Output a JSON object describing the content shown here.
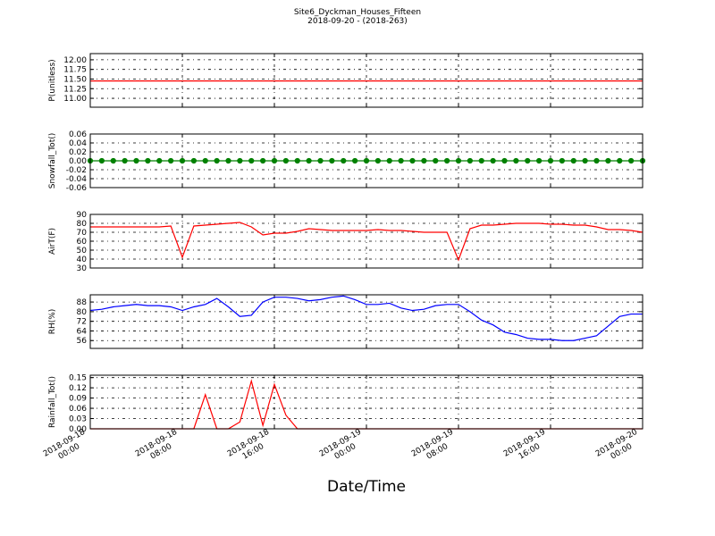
{
  "title": "Site6_Dyckman_Houses_Fifteen",
  "subtitle": "2018-09-20 - (2018-263)",
  "x_label": "Date/Time",
  "chart_data": [
    {
      "type": "line",
      "y_label": "P(unitless)",
      "color": "#ff0000",
      "grid": true,
      "x": [
        "2018-09-18 00:00",
        "2018-09-18 01:00",
        "2018-09-18 02:00",
        "2018-09-18 03:00",
        "2018-09-18 04:00",
        "2018-09-18 05:00",
        "2018-09-18 06:00",
        "2018-09-18 07:00",
        "2018-09-18 08:00",
        "2018-09-18 09:00",
        "2018-09-18 10:00",
        "2018-09-18 11:00",
        "2018-09-18 12:00",
        "2018-09-18 13:00",
        "2018-09-18 14:00",
        "2018-09-18 15:00",
        "2018-09-18 16:00",
        "2018-09-18 17:00",
        "2018-09-18 18:00",
        "2018-09-18 19:00",
        "2018-09-18 20:00",
        "2018-09-18 21:00",
        "2018-09-18 22:00",
        "2018-09-18 23:00",
        "2018-09-19 00:00",
        "2018-09-19 01:00",
        "2018-09-19 02:00",
        "2018-09-19 03:00",
        "2018-09-19 04:00",
        "2018-09-19 05:00",
        "2018-09-19 06:00",
        "2018-09-19 07:00",
        "2018-09-19 08:00",
        "2018-09-19 09:00",
        "2018-09-19 10:00",
        "2018-09-19 11:00",
        "2018-09-19 12:00",
        "2018-09-19 13:00",
        "2018-09-19 14:00",
        "2018-09-19 15:00",
        "2018-09-19 16:00",
        "2018-09-19 17:00",
        "2018-09-19 18:00",
        "2018-09-19 19:00",
        "2018-09-19 20:00",
        "2018-09-19 21:00",
        "2018-09-19 22:00",
        "2018-09-19 23:00",
        "2018-09-20 00:00"
      ],
      "values": [
        11.45,
        11.45,
        11.45,
        11.45,
        11.45,
        11.45,
        11.45,
        11.45,
        11.45,
        11.45,
        11.45,
        11.45,
        11.45,
        11.45,
        11.45,
        11.45,
        11.45,
        11.45,
        11.45,
        11.45,
        11.45,
        11.45,
        11.45,
        11.45,
        11.45,
        11.45,
        11.45,
        11.45,
        11.45,
        11.45,
        11.45,
        11.45,
        11.45,
        11.45,
        11.45,
        11.45,
        11.45,
        11.45,
        11.45,
        11.45,
        11.45,
        11.45,
        11.45,
        11.45,
        11.45,
        11.45,
        11.45,
        11.45,
        11.45
      ],
      "xlim": [
        "2018-09-18 00:00",
        "2018-09-20 00:00"
      ],
      "xticks": [
        "2018-09-18 00:00",
        "2018-09-18 08:00",
        "2018-09-18 16:00",
        "2018-09-19 00:00",
        "2018-09-19 08:00",
        "2018-09-19 16:00",
        "2018-09-20 00:00"
      ],
      "ylim": [
        10.77,
        12.16
      ],
      "yticks": [
        {
          "value": 11,
          "label": "11.00"
        },
        11.25,
        {
          "value": 11.5,
          "label": "11.50"
        },
        11.75,
        {
          "value": 12,
          "label": "12.00"
        }
      ]
    },
    {
      "type": "line",
      "y_label": "Snowfall_Tot()",
      "color": "#008000",
      "grid": true,
      "marker": true,
      "x": [
        "2018-09-18 00:00",
        "2018-09-18 01:00",
        "2018-09-18 02:00",
        "2018-09-18 03:00",
        "2018-09-18 04:00",
        "2018-09-18 05:00",
        "2018-09-18 06:00",
        "2018-09-18 07:00",
        "2018-09-18 08:00",
        "2018-09-18 09:00",
        "2018-09-18 10:00",
        "2018-09-18 11:00",
        "2018-09-18 12:00",
        "2018-09-18 13:00",
        "2018-09-18 14:00",
        "2018-09-18 15:00",
        "2018-09-18 16:00",
        "2018-09-18 17:00",
        "2018-09-18 18:00",
        "2018-09-18 19:00",
        "2018-09-18 20:00",
        "2018-09-18 21:00",
        "2018-09-18 22:00",
        "2018-09-18 23:00",
        "2018-09-19 00:00",
        "2018-09-19 01:00",
        "2018-09-19 02:00",
        "2018-09-19 03:00",
        "2018-09-19 04:00",
        "2018-09-19 05:00",
        "2018-09-19 06:00",
        "2018-09-19 07:00",
        "2018-09-19 08:00",
        "2018-09-19 09:00",
        "2018-09-19 10:00",
        "2018-09-19 11:00",
        "2018-09-19 12:00",
        "2018-09-19 13:00",
        "2018-09-19 14:00",
        "2018-09-19 15:00",
        "2018-09-19 16:00",
        "2018-09-19 17:00",
        "2018-09-19 18:00",
        "2018-09-19 19:00",
        "2018-09-19 20:00",
        "2018-09-19 21:00",
        "2018-09-19 22:00",
        "2018-09-19 23:00",
        "2018-09-20 00:00"
      ],
      "values": [
        0,
        0,
        0,
        0,
        0,
        0,
        0,
        0,
        0,
        0,
        0,
        0,
        0,
        0,
        0,
        0,
        0,
        0,
        0,
        0,
        0,
        0,
        0,
        0,
        0,
        0,
        0,
        0,
        0,
        0,
        0,
        0,
        0,
        0,
        0,
        0,
        0,
        0,
        0,
        0,
        0,
        0,
        0,
        0,
        0,
        0,
        0,
        0,
        0
      ],
      "xlim": [
        "2018-09-18 00:00",
        "2018-09-20 00:00"
      ],
      "xticks": [
        "2018-09-18 00:00",
        "2018-09-18 08:00",
        "2018-09-18 16:00",
        "2018-09-19 00:00",
        "2018-09-19 08:00",
        "2018-09-19 16:00",
        "2018-09-20 00:00"
      ],
      "ylim": [
        -0.06,
        0.06
      ],
      "yticks": [
        -0.06,
        -0.04,
        -0.02,
        {
          "value": 0,
          "label": "0.00"
        },
        0.02,
        0.04,
        0.06
      ]
    },
    {
      "type": "line",
      "y_label": "AirT(F)",
      "color": "#ff0000",
      "grid": true,
      "x": [
        "2018-09-18 00:00",
        "2018-09-18 01:00",
        "2018-09-18 02:00",
        "2018-09-18 03:00",
        "2018-09-18 04:00",
        "2018-09-18 05:00",
        "2018-09-18 06:00",
        "2018-09-18 07:00",
        "2018-09-18 08:00",
        "2018-09-18 09:00",
        "2018-09-18 10:00",
        "2018-09-18 11:00",
        "2018-09-18 12:00",
        "2018-09-18 13:00",
        "2018-09-18 14:00",
        "2018-09-18 15:00",
        "2018-09-18 16:00",
        "2018-09-18 17:00",
        "2018-09-18 18:00",
        "2018-09-18 19:00",
        "2018-09-18 20:00",
        "2018-09-18 21:00",
        "2018-09-18 22:00",
        "2018-09-18 23:00",
        "2018-09-19 00:00",
        "2018-09-19 01:00",
        "2018-09-19 02:00",
        "2018-09-19 03:00",
        "2018-09-19 04:00",
        "2018-09-19 05:00",
        "2018-09-19 06:00",
        "2018-09-19 07:00",
        "2018-09-19 08:00",
        "2018-09-19 09:00",
        "2018-09-19 10:00",
        "2018-09-19 11:00",
        "2018-09-19 12:00",
        "2018-09-19 13:00",
        "2018-09-19 14:00",
        "2018-09-19 15:00",
        "2018-09-19 16:00",
        "2018-09-19 17:00",
        "2018-09-19 18:00",
        "2018-09-19 19:00",
        "2018-09-19 20:00",
        "2018-09-19 21:00",
        "2018-09-19 22:00",
        "2018-09-19 23:00",
        "2018-09-20 00:00"
      ],
      "values": [
        76,
        76,
        76,
        76,
        76,
        76,
        76,
        77,
        42,
        77,
        78,
        79,
        80,
        81,
        76,
        67,
        69,
        69,
        71,
        74,
        73,
        72,
        72,
        72,
        72,
        73,
        72,
        72,
        71,
        70,
        70,
        70,
        39,
        74,
        78,
        78,
        79,
        80,
        80,
        80,
        79,
        79,
        78,
        78,
        76,
        73,
        73,
        72,
        70
      ],
      "xlim": [
        "2018-09-18 00:00",
        "2018-09-20 00:00"
      ],
      "xticks": [
        "2018-09-18 00:00",
        "2018-09-18 08:00",
        "2018-09-18 16:00",
        "2018-09-19 00:00",
        "2018-09-19 08:00",
        "2018-09-19 16:00",
        "2018-09-20 00:00"
      ],
      "ylim": [
        30,
        90
      ],
      "yticks": [
        30,
        40,
        50,
        60,
        70,
        80,
        90
      ]
    },
    {
      "type": "line",
      "y_label": "RH(%)",
      "color": "#0000ff",
      "grid": true,
      "x": [
        "2018-09-18 00:00",
        "2018-09-18 01:00",
        "2018-09-18 02:00",
        "2018-09-18 03:00",
        "2018-09-18 04:00",
        "2018-09-18 05:00",
        "2018-09-18 06:00",
        "2018-09-18 07:00",
        "2018-09-18 08:00",
        "2018-09-18 09:00",
        "2018-09-18 10:00",
        "2018-09-18 11:00",
        "2018-09-18 12:00",
        "2018-09-18 13:00",
        "2018-09-18 14:00",
        "2018-09-18 15:00",
        "2018-09-18 16:00",
        "2018-09-18 17:00",
        "2018-09-18 18:00",
        "2018-09-18 19:00",
        "2018-09-18 20:00",
        "2018-09-18 21:00",
        "2018-09-18 22:00",
        "2018-09-18 23:00",
        "2018-09-19 00:00",
        "2018-09-19 01:00",
        "2018-09-19 02:00",
        "2018-09-19 03:00",
        "2018-09-19 04:00",
        "2018-09-19 05:00",
        "2018-09-19 06:00",
        "2018-09-19 07:00",
        "2018-09-19 08:00",
        "2018-09-19 09:00",
        "2018-09-19 10:00",
        "2018-09-19 11:00",
        "2018-09-19 12:00",
        "2018-09-19 13:00",
        "2018-09-19 14:00",
        "2018-09-19 15:00",
        "2018-09-19 16:00",
        "2018-09-19 17:00",
        "2018-09-19 18:00",
        "2018-09-19 19:00",
        "2018-09-19 20:00",
        "2018-09-19 21:00",
        "2018-09-19 22:00",
        "2018-09-19 23:00",
        "2018-09-20 00:00"
      ],
      "values": [
        81,
        82,
        84,
        85,
        86,
        85,
        85,
        84,
        81,
        84,
        86,
        91,
        84,
        76,
        77,
        88,
        92,
        92,
        91,
        89,
        90,
        92,
        93,
        90,
        86,
        86,
        87,
        83,
        81,
        82,
        85,
        86,
        86,
        80,
        73,
        69,
        63,
        61,
        58,
        57,
        57,
        56,
        56,
        58,
        60,
        68,
        76,
        78,
        78
      ],
      "xlim": [
        "2018-09-18 00:00",
        "2018-09-20 00:00"
      ],
      "xticks": [
        "2018-09-18 00:00",
        "2018-09-18 08:00",
        "2018-09-18 16:00",
        "2018-09-19 00:00",
        "2018-09-19 08:00",
        "2018-09-19 16:00",
        "2018-09-20 00:00"
      ],
      "ylim": [
        49.5,
        94
      ],
      "yticks": [
        56,
        64,
        72,
        80,
        88
      ]
    },
    {
      "type": "line",
      "y_label": "Rainfall_Tot()",
      "color": "#ff0000",
      "grid": true,
      "x": [
        "2018-09-18 00:00",
        "2018-09-18 01:00",
        "2018-09-18 02:00",
        "2018-09-18 03:00",
        "2018-09-18 04:00",
        "2018-09-18 05:00",
        "2018-09-18 06:00",
        "2018-09-18 07:00",
        "2018-09-18 08:00",
        "2018-09-18 09:00",
        "2018-09-18 10:00",
        "2018-09-18 11:00",
        "2018-09-18 12:00",
        "2018-09-18 13:00",
        "2018-09-18 14:00",
        "2018-09-18 15:00",
        "2018-09-18 16:00",
        "2018-09-18 17:00",
        "2018-09-18 18:00",
        "2018-09-18 19:00",
        "2018-09-18 20:00",
        "2018-09-18 21:00",
        "2018-09-18 22:00",
        "2018-09-18 23:00",
        "2018-09-19 00:00",
        "2018-09-19 01:00",
        "2018-09-19 02:00",
        "2018-09-19 03:00",
        "2018-09-19 04:00",
        "2018-09-19 05:00",
        "2018-09-19 06:00",
        "2018-09-19 07:00",
        "2018-09-19 08:00",
        "2018-09-19 09:00",
        "2018-09-19 10:00",
        "2018-09-19 11:00",
        "2018-09-19 12:00",
        "2018-09-19 13:00",
        "2018-09-19 14:00",
        "2018-09-19 15:00",
        "2018-09-19 16:00",
        "2018-09-19 17:00",
        "2018-09-19 18:00",
        "2018-09-19 19:00",
        "2018-09-19 20:00",
        "2018-09-19 21:00",
        "2018-09-19 22:00",
        "2018-09-19 23:00",
        "2018-09-20 00:00"
      ],
      "values": [
        0,
        0,
        0,
        0,
        0,
        0,
        0,
        0,
        0,
        0,
        0.1,
        0,
        0,
        0.02,
        0.14,
        0.01,
        0.13,
        0.04,
        0,
        0,
        0,
        0,
        0,
        0,
        0,
        0,
        0,
        0,
        0,
        0,
        0,
        0,
        0,
        0,
        0,
        0,
        0,
        0,
        0,
        0,
        0,
        0,
        0,
        0,
        0,
        0,
        0,
        0,
        0
      ],
      "xlim": [
        "2018-09-18 00:00",
        "2018-09-20 00:00"
      ],
      "xticks": [
        "2018-09-18 00:00",
        "2018-09-18 08:00",
        "2018-09-18 16:00",
        "2018-09-19 00:00",
        "2018-09-19 08:00",
        "2018-09-19 16:00",
        "2018-09-20 00:00"
      ],
      "ylim": [
        0,
        0.157
      ],
      "yticks": [
        {
          "value": 0,
          "label": "0.00"
        },
        0.03,
        0.06,
        0.09,
        0.12,
        0.15
      ]
    }
  ]
}
